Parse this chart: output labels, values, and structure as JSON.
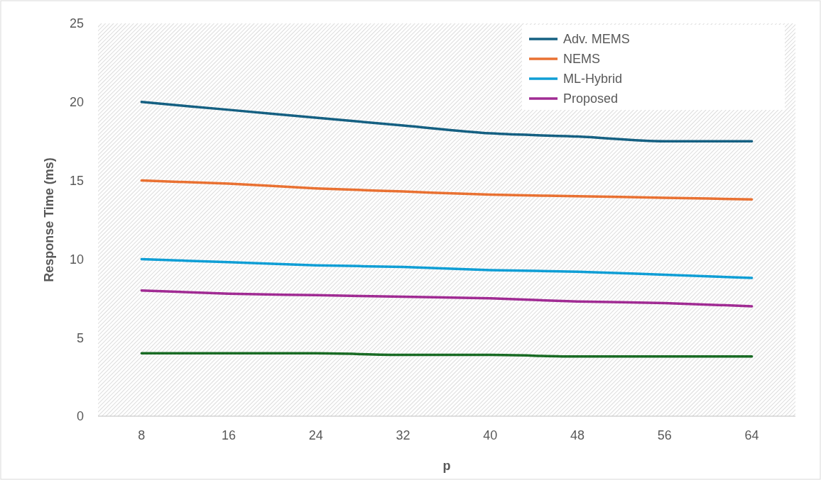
{
  "chart_data": {
    "type": "line",
    "xlabel": "p",
    "ylabel": "Response Time (ms)",
    "categories": [
      "8",
      "16",
      "24",
      "32",
      "40",
      "48",
      "56",
      "64"
    ],
    "ylim": [
      0,
      25
    ],
    "yticks": [
      0,
      5,
      10,
      15,
      20,
      25
    ],
    "grid": false,
    "legend": "top right",
    "marker": "none",
    "line_style": "solid",
    "series": [
      {
        "name": "Adv. MEMS",
        "color": "#156082",
        "values": [
          20,
          19.5,
          19,
          18.5,
          18,
          17.8,
          17.5,
          17.5
        ]
      },
      {
        "name": "NEMS",
        "color": "#e97132",
        "values": [
          15,
          14.8,
          14.5,
          14.3,
          14.1,
          14,
          13.9,
          13.8
        ]
      },
      {
        "color": "#196b24",
        "values": [
          4,
          4,
          4,
          3.9,
          3.9,
          3.8,
          3.8,
          3.8
        ]
      },
      {
        "name": "ML-Hybrid",
        "color": "#0f9ed5",
        "values": [
          10,
          9.8,
          9.6,
          9.5,
          9.3,
          9.2,
          9,
          8.8
        ]
      },
      {
        "name": "Proposed",
        "color": "#a02b93",
        "values": [
          8,
          7.8,
          7.7,
          7.6,
          7.5,
          7.3,
          7.2,
          7
        ]
      }
    ]
  }
}
